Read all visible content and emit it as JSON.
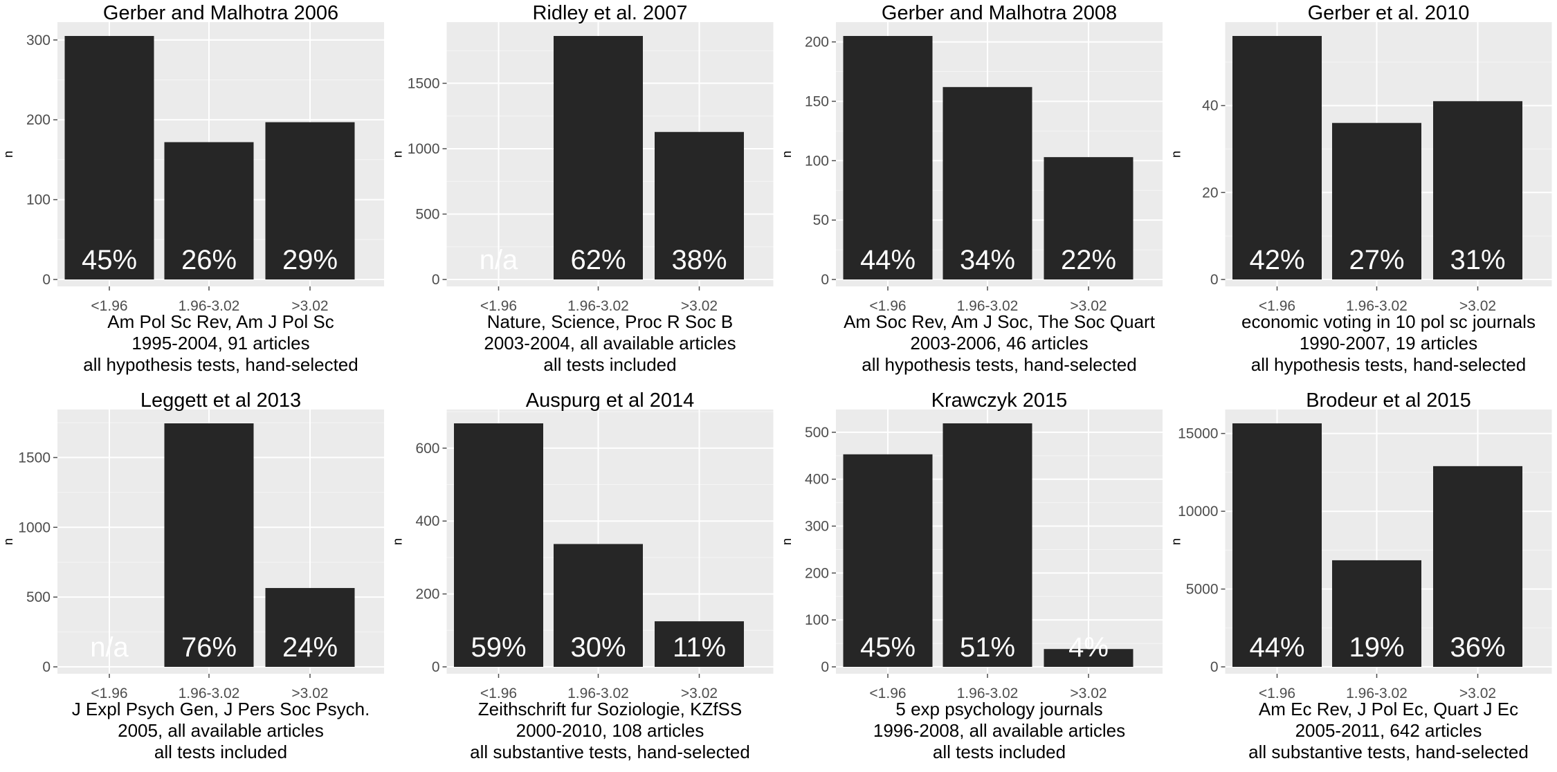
{
  "chart_data": [
    {
      "type": "bar",
      "title": "Gerber and Malhotra 2006",
      "ylabel": "n",
      "categories": [
        "<1.96",
        "1.96-3.02",
        ">3.02"
      ],
      "values": [
        305,
        172,
        197
      ],
      "labels": [
        "45%",
        "26%",
        "29%"
      ],
      "ylim": [
        0,
        305
      ],
      "yticks": [
        0,
        100,
        200,
        300
      ],
      "caption": [
        "Am Pol Sc Rev, Am J Pol Sc",
        "1995-2004, 91 articles",
        "all hypothesis tests, hand-selected"
      ],
      "grid": true
    },
    {
      "type": "bar",
      "title": "Ridley et al. 2007",
      "ylabel": "n",
      "categories": [
        "<1.96",
        "1.96-3.02",
        ">3.02"
      ],
      "values": [
        0,
        1862,
        1128
      ],
      "labels": [
        "n/a",
        "62%",
        "38%"
      ],
      "ylim": [
        0,
        1862
      ],
      "yticks": [
        0,
        500,
        1000,
        1500
      ],
      "caption": [
        "Nature, Science, Proc R Soc B",
        "2003-2004, all available articles",
        "all tests included"
      ],
      "grid": true
    },
    {
      "type": "bar",
      "title": "Gerber and Malhotra 2008",
      "ylabel": "n",
      "categories": [
        "<1.96",
        "1.96-3.02",
        ">3.02"
      ],
      "values": [
        205,
        162,
        103
      ],
      "labels": [
        "44%",
        "34%",
        "22%"
      ],
      "ylim": [
        0,
        205
      ],
      "yticks": [
        0,
        50,
        100,
        150,
        200
      ],
      "caption": [
        "Am Soc Rev, Am J Soc, The Soc Quart",
        "2003-2006, 46 articles",
        "all hypothesis tests, hand-selected"
      ],
      "grid": true
    },
    {
      "type": "bar",
      "title": "Gerber et al. 2010",
      "ylabel": "n",
      "categories": [
        "<1.96",
        "1.96-3.02",
        ">3.02"
      ],
      "values": [
        56,
        36,
        41
      ],
      "labels": [
        "42%",
        "27%",
        "31%"
      ],
      "ylim": [
        0,
        56
      ],
      "yticks": [
        0,
        20,
        40
      ],
      "caption": [
        "economic voting in 10 pol sc journals",
        "1990-2007, 19 articles",
        "all hypothesis tests, hand-selected"
      ],
      "grid": true
    },
    {
      "type": "bar",
      "title": "Leggett et al 2013",
      "ylabel": "n",
      "categories": [
        "<1.96",
        "1.96-3.02",
        ">3.02"
      ],
      "values": [
        0,
        1745,
        565
      ],
      "labels": [
        "n/a",
        "76%",
        "24%"
      ],
      "ylim": [
        0,
        1745
      ],
      "yticks": [
        0,
        500,
        1000,
        1500
      ],
      "caption": [
        "J Expl Psych Gen, J Pers Soc Psych.",
        "2005, all available articles",
        "all tests included"
      ],
      "grid": true
    },
    {
      "type": "bar",
      "title": "Auspurg et al 2014",
      "ylabel": "n",
      "categories": [
        "<1.96",
        "1.96-3.02",
        ">3.02"
      ],
      "values": [
        668,
        337,
        125
      ],
      "labels": [
        "59%",
        "30%",
        "11%"
      ],
      "ylim": [
        0,
        668
      ],
      "yticks": [
        0,
        200,
        400,
        600
      ],
      "caption": [
        "Zeithschrift fur Soziologie, KZfSS",
        "2000-2010, 108 articles",
        "all substantive tests, hand-selected"
      ],
      "grid": true
    },
    {
      "type": "bar",
      "title": "Krawczyk 2015",
      "ylabel": "n",
      "categories": [
        "<1.96",
        "1.96-3.02",
        ">3.02"
      ],
      "values": [
        453,
        519,
        38
      ],
      "labels": [
        "45%",
        "51%",
        "4%"
      ],
      "ylim": [
        0,
        519
      ],
      "yticks": [
        0,
        100,
        200,
        300,
        400,
        500
      ],
      "caption": [
        "5 exp psychology journals",
        "1996-2008, all available articles",
        "all tests included"
      ],
      "grid": true
    },
    {
      "type": "bar",
      "title": "Brodeur et al 2015",
      "ylabel": "n",
      "categories": [
        "<1.96",
        "1.96-3.02",
        ">3.02"
      ],
      "values": [
        15650,
        6850,
        12900
      ],
      "labels": [
        "44%",
        "19%",
        "36%"
      ],
      "ylim": [
        0,
        15650
      ],
      "yticks": [
        0,
        5000,
        10000,
        15000
      ],
      "caption": [
        "Am Ec Rev, J Pol Ec, Quart J Ec",
        "2005-2011, 642 articles",
        "all substantive tests, hand-selected"
      ],
      "grid": true
    }
  ],
  "colors": {
    "panel_bg": "#ebebeb",
    "grid_major": "#ffffff",
    "grid_minor": "#f5f5f5",
    "bar": "#262626",
    "bar_label": "#ffffff",
    "tick_text": "#4d4d4d"
  }
}
